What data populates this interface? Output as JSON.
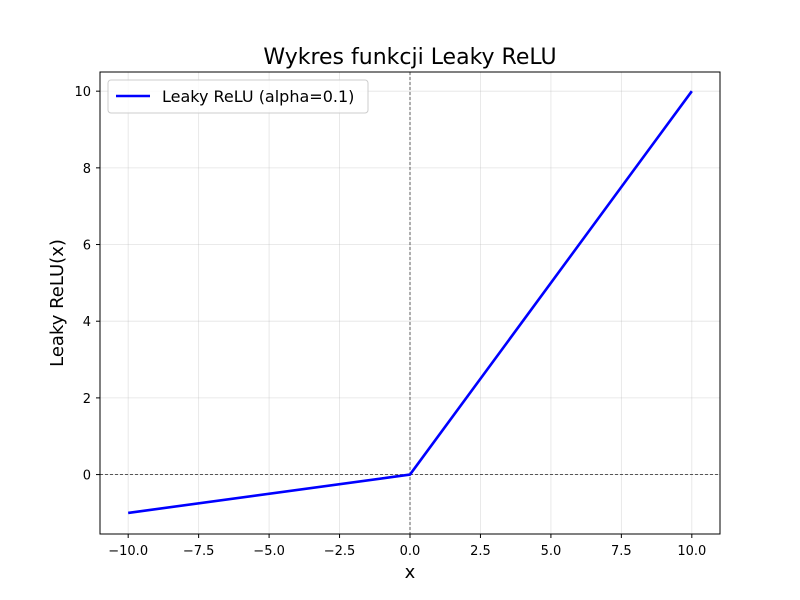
{
  "chart_data": {
    "type": "line",
    "title": "Wykres funkcji Leaky ReLU",
    "xlabel": "x",
    "ylabel": "Leaky ReLU(x)",
    "xlim": [
      -11,
      11
    ],
    "ylim": [
      -1.55,
      10.5
    ],
    "x_ticks": [
      -10,
      -7.5,
      -5,
      -2.5,
      0,
      2.5,
      5,
      7.5,
      10
    ],
    "x_tick_labels": [
      "−10.0",
      "−7.5",
      "−5.0",
      "−2.5",
      "0.0",
      "2.5",
      "5.0",
      "7.5",
      "10.0"
    ],
    "y_ticks": [
      0,
      2,
      4,
      6,
      8,
      10
    ],
    "y_tick_labels": [
      "0",
      "2",
      "4",
      "6",
      "8",
      "10"
    ],
    "grid": true,
    "reference_lines": {
      "x": 0,
      "y": 0
    },
    "legend_position": "top-left",
    "series": [
      {
        "name": "Leaky ReLU (alpha=0.1)",
        "color": "#0000ff",
        "x": [
          -10,
          0,
          10
        ],
        "y": [
          -1,
          0,
          10
        ]
      }
    ]
  }
}
